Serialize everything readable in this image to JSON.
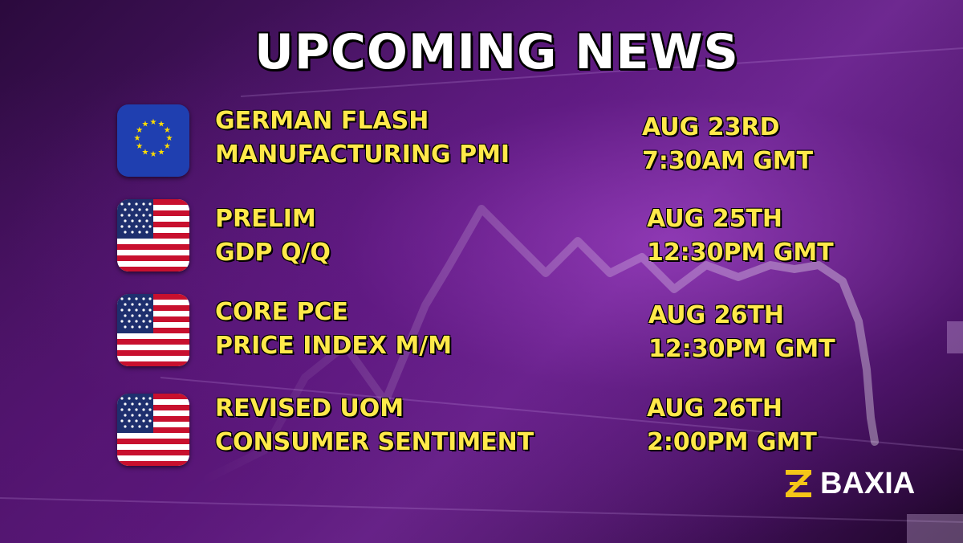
{
  "title": "UPCOMING NEWS",
  "events": [
    {
      "flag": "eu-flag-icon",
      "name_line1": "GERMAN FLASH",
      "name_line2": "MANUFACTURING PMI",
      "date": "AUG 23RD",
      "time": "7:30AM GMT"
    },
    {
      "flag": "us-flag-icon",
      "name_line1": "PRELIM",
      "name_line2": "GDP Q/Q",
      "date": "AUG 25TH",
      "time": "12:30PM GMT"
    },
    {
      "flag": "us-flag-icon",
      "name_line1": "CORE PCE",
      "name_line2": "PRICE INDEX M/M",
      "date": "AUG 26TH",
      "time": "12:30PM GMT"
    },
    {
      "flag": "us-flag-icon",
      "name_line1": "REVISED UOM",
      "name_line2": "CONSUMER SENTIMENT",
      "date": "AUG 26TH",
      "time": "2:00PM GMT"
    }
  ],
  "brand": {
    "name": "BAXIA",
    "accent_color": "#f5c518"
  },
  "colors": {
    "text_accent": "#ffe94a",
    "title": "#ffffff"
  }
}
